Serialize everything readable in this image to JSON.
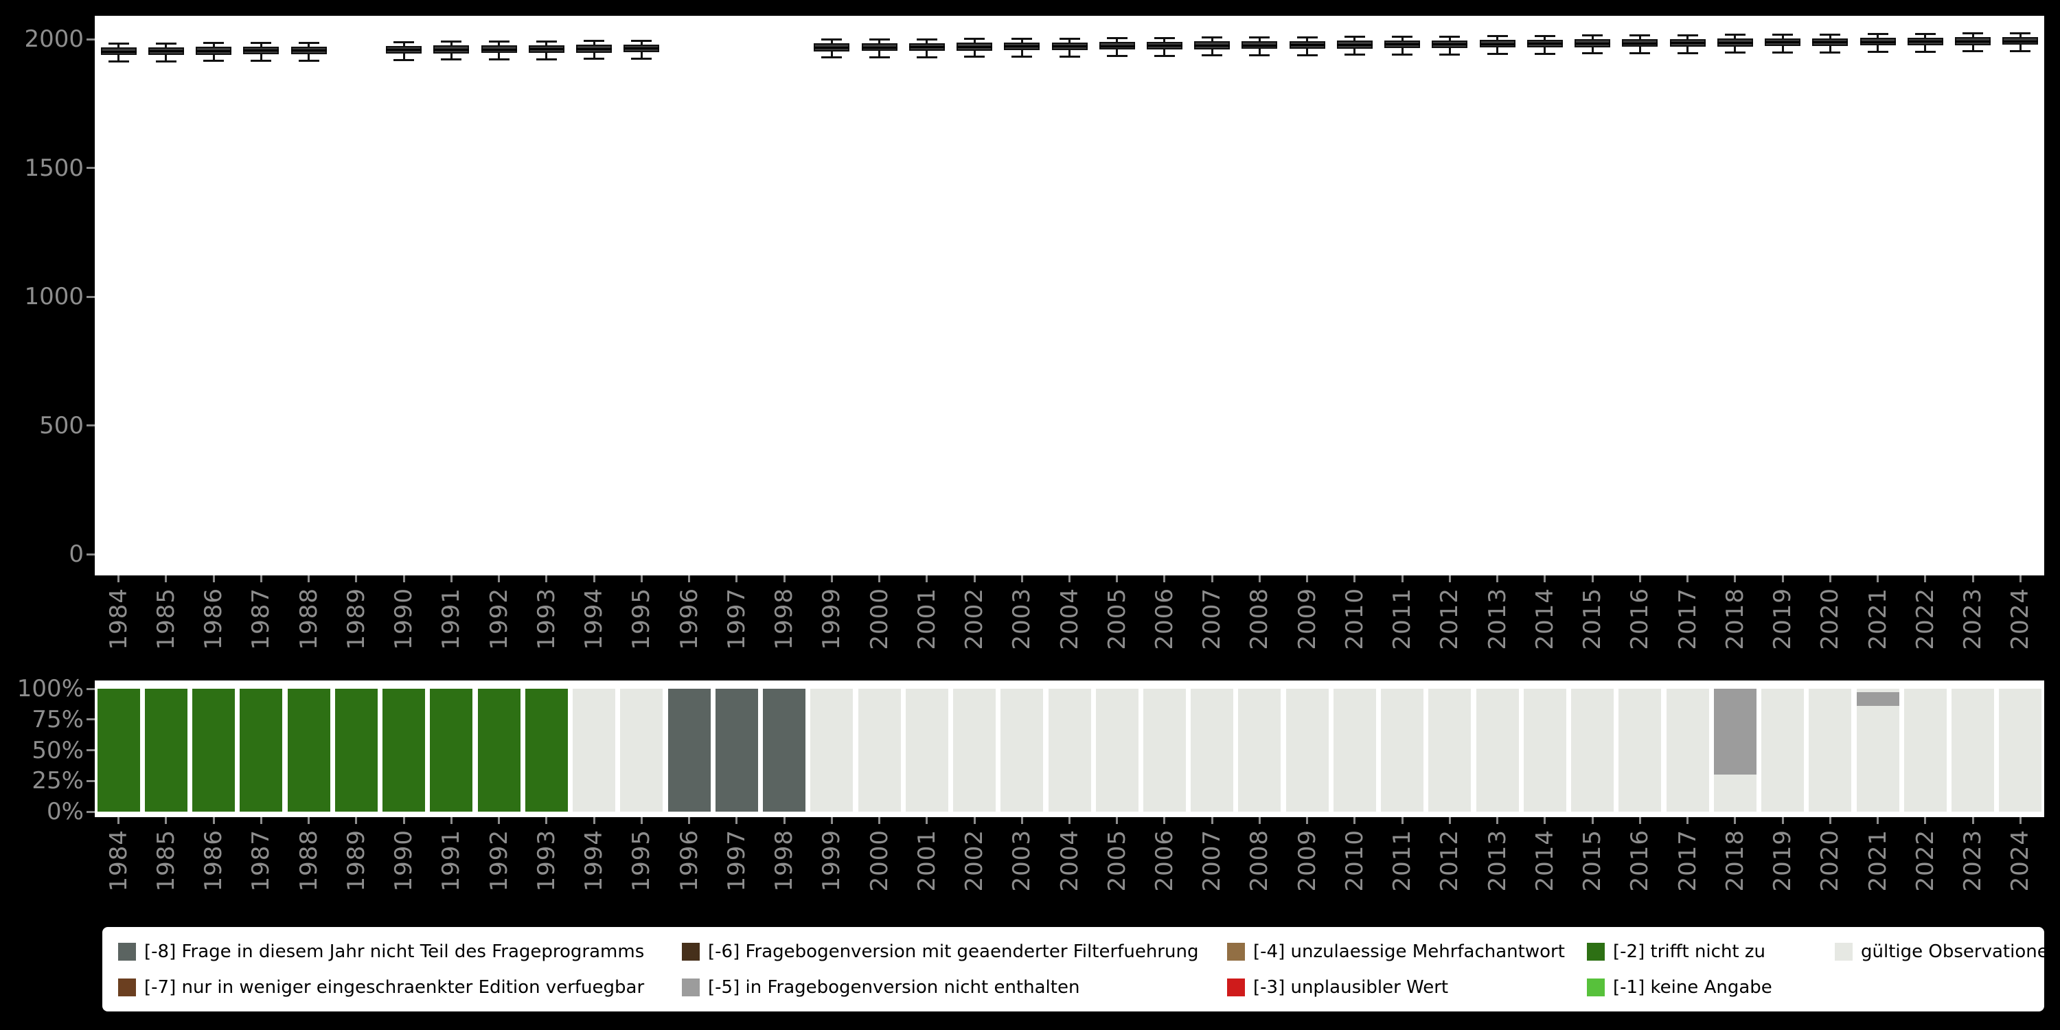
{
  "figure": {
    "background": "#000000",
    "panel_background": "#ffffff",
    "axis_text_color": "#8e8e8e",
    "box_fill": "#3c3c3c",
    "box_line": "#111111"
  },
  "years": [
    "1984",
    "1985",
    "1986",
    "1987",
    "1988",
    "1989",
    "1990",
    "1991",
    "1992",
    "1993",
    "1994",
    "1995",
    "1996",
    "1997",
    "1998",
    "1999",
    "2000",
    "2001",
    "2002",
    "2003",
    "2004",
    "2005",
    "2006",
    "2007",
    "2008",
    "2009",
    "2010",
    "2011",
    "2012",
    "2013",
    "2014",
    "2015",
    "2016",
    "2017",
    "2018",
    "2019",
    "2020",
    "2021",
    "2022",
    "2023",
    "2024"
  ],
  "code_colors": {
    "-8": "#5b6461",
    "-7": "#6b3f20",
    "-6": "#46301b",
    "-5": "#9c9c9c",
    "-4": "#926f44",
    "-3": "#cf1b1b",
    "-2": "#2d7014",
    "-1": "#57c13b",
    "valid": "#e6e8e3"
  },
  "chart_data": [
    {
      "type": "boxplot",
      "title": "",
      "xlabel": "",
      "ylabel": "",
      "ylim": [
        0,
        2090
      ],
      "y_ticks": [
        0,
        500,
        1000,
        1500,
        2000
      ],
      "categories": [
        "1984",
        "1985",
        "1986",
        "1987",
        "1988",
        "1989",
        "1990",
        "1991",
        "1992",
        "1993",
        "1994",
        "1995",
        "1996",
        "1997",
        "1998",
        "1999",
        "2000",
        "2001",
        "2002",
        "2003",
        "2004",
        "2005",
        "2006",
        "2007",
        "2008",
        "2009",
        "2010",
        "2011",
        "2012",
        "2013",
        "2014",
        "2015",
        "2016",
        "2017",
        "2018",
        "2019",
        "2020",
        "2021",
        "2022",
        "2023",
        "2024"
      ],
      "boxes": [
        {
          "year": "1984",
          "low": 1912,
          "q1": 1938,
          "median": 1952,
          "q3": 1968,
          "high": 1984
        },
        {
          "year": "1985",
          "low": 1913,
          "q1": 1939,
          "median": 1953,
          "q3": 1969,
          "high": 1985
        },
        {
          "year": "1986",
          "low": 1914,
          "q1": 1940,
          "median": 1954,
          "q3": 1970,
          "high": 1986
        },
        {
          "year": "1987",
          "low": 1915,
          "q1": 1941,
          "median": 1955,
          "q3": 1971,
          "high": 1987
        },
        {
          "year": "1988",
          "low": 1916,
          "q1": 1942,
          "median": 1956,
          "q3": 1972,
          "high": 1988
        },
        {
          "year": "1990",
          "low": 1918,
          "q1": 1944,
          "median": 1958,
          "q3": 1974,
          "high": 1990
        },
        {
          "year": "1991",
          "low": 1919,
          "q1": 1945,
          "median": 1959,
          "q3": 1975,
          "high": 1991
        },
        {
          "year": "1992",
          "low": 1920,
          "q1": 1946,
          "median": 1960,
          "q3": 1976,
          "high": 1992
        },
        {
          "year": "1993",
          "low": 1921,
          "q1": 1947,
          "median": 1961,
          "q3": 1977,
          "high": 1993
        },
        {
          "year": "1994",
          "low": 1922,
          "q1": 1948,
          "median": 1962,
          "q3": 1978,
          "high": 1994
        },
        {
          "year": "1995",
          "low": 1923,
          "q1": 1949,
          "median": 1963,
          "q3": 1979,
          "high": 1995
        },
        {
          "year": "1999",
          "low": 1927,
          "q1": 1953,
          "median": 1967,
          "q3": 1983,
          "high": 1999
        },
        {
          "year": "2000",
          "low": 1928,
          "q1": 1954,
          "median": 1968,
          "q3": 1984,
          "high": 2000
        },
        {
          "year": "2001",
          "low": 1929,
          "q1": 1955,
          "median": 1969,
          "q3": 1985,
          "high": 2001
        },
        {
          "year": "2002",
          "low": 1930,
          "q1": 1956,
          "median": 1970,
          "q3": 1986,
          "high": 2002
        },
        {
          "year": "2003",
          "low": 1931,
          "q1": 1957,
          "median": 1971,
          "q3": 1987,
          "high": 2003
        },
        {
          "year": "2004",
          "low": 1932,
          "q1": 1958,
          "median": 1972,
          "q3": 1988,
          "high": 2004
        },
        {
          "year": "2005",
          "low": 1933,
          "q1": 1959,
          "median": 1973,
          "q3": 1989,
          "high": 2005
        },
        {
          "year": "2006",
          "low": 1934,
          "q1": 1960,
          "median": 1974,
          "q3": 1990,
          "high": 2006
        },
        {
          "year": "2007",
          "low": 1935,
          "q1": 1961,
          "median": 1975,
          "q3": 1991,
          "high": 2007
        },
        {
          "year": "2008",
          "low": 1936,
          "q1": 1962,
          "median": 1976,
          "q3": 1992,
          "high": 2008
        },
        {
          "year": "2009",
          "low": 1937,
          "q1": 1963,
          "median": 1977,
          "q3": 1993,
          "high": 2009
        },
        {
          "year": "2010",
          "low": 1938,
          "q1": 1964,
          "median": 1978,
          "q3": 1994,
          "high": 2010
        },
        {
          "year": "2011",
          "low": 1939,
          "q1": 1965,
          "median": 1979,
          "q3": 1995,
          "high": 2011
        },
        {
          "year": "2012",
          "low": 1940,
          "q1": 1966,
          "median": 1980,
          "q3": 1996,
          "high": 2012
        },
        {
          "year": "2013",
          "low": 1941,
          "q1": 1967,
          "median": 1981,
          "q3": 1997,
          "high": 2013
        },
        {
          "year": "2014",
          "low": 1942,
          "q1": 1968,
          "median": 1982,
          "q3": 1998,
          "high": 2014
        },
        {
          "year": "2015",
          "low": 1943,
          "q1": 1969,
          "median": 1983,
          "q3": 1999,
          "high": 2015
        },
        {
          "year": "2016",
          "low": 1944,
          "q1": 1970,
          "median": 1984,
          "q3": 2000,
          "high": 2016
        },
        {
          "year": "2017",
          "low": 1945,
          "q1": 1971,
          "median": 1985,
          "q3": 2001,
          "high": 2017
        },
        {
          "year": "2018",
          "low": 1946,
          "q1": 1972,
          "median": 1986,
          "q3": 2002,
          "high": 2018
        },
        {
          "year": "2019",
          "low": 1947,
          "q1": 1973,
          "median": 1987,
          "q3": 2003,
          "high": 2019
        },
        {
          "year": "2020",
          "low": 1948,
          "q1": 1974,
          "median": 1988,
          "q3": 2004,
          "high": 2020
        },
        {
          "year": "2021",
          "low": 1949,
          "q1": 1975,
          "median": 1989,
          "q3": 2005,
          "high": 2021
        },
        {
          "year": "2022",
          "low": 1950,
          "q1": 1976,
          "median": 1990,
          "q3": 2006,
          "high": 2022
        },
        {
          "year": "2023",
          "low": 1951,
          "q1": 1977,
          "median": 1991,
          "q3": 2007,
          "high": 2023
        },
        {
          "year": "2024",
          "low": 1952,
          "q1": 1978,
          "median": 1992,
          "q3": 2008,
          "high": 2024
        }
      ]
    },
    {
      "type": "stacked_bar_percent",
      "title": "",
      "xlabel": "",
      "ylabel": "",
      "ylim": [
        0,
        100
      ],
      "y_ticks": [
        {
          "pct": 0,
          "label": "0%"
        },
        {
          "pct": 25,
          "label": "25%"
        },
        {
          "pct": 50,
          "label": "50%"
        },
        {
          "pct": 75,
          "label": "75%"
        },
        {
          "pct": 100,
          "label": "100%"
        }
      ],
      "categories": [
        "1984",
        "1985",
        "1986",
        "1987",
        "1988",
        "1989",
        "1990",
        "1991",
        "1992",
        "1993",
        "1994",
        "1995",
        "1996",
        "1997",
        "1998",
        "1999",
        "2000",
        "2001",
        "2002",
        "2003",
        "2004",
        "2005",
        "2006",
        "2007",
        "2008",
        "2009",
        "2010",
        "2011",
        "2012",
        "2013",
        "2014",
        "2015",
        "2016",
        "2017",
        "2018",
        "2019",
        "2020",
        "2021",
        "2022",
        "2023",
        "2024"
      ],
      "bars": [
        {
          "year": "1984",
          "segments": [
            {
              "code": "-2",
              "pct": 100
            }
          ]
        },
        {
          "year": "1985",
          "segments": [
            {
              "code": "-2",
              "pct": 100
            }
          ]
        },
        {
          "year": "1986",
          "segments": [
            {
              "code": "-2",
              "pct": 100
            }
          ]
        },
        {
          "year": "1987",
          "segments": [
            {
              "code": "-2",
              "pct": 100
            }
          ]
        },
        {
          "year": "1988",
          "segments": [
            {
              "code": "-2",
              "pct": 100
            }
          ]
        },
        {
          "year": "1989",
          "segments": [
            {
              "code": "-2",
              "pct": 100
            }
          ]
        },
        {
          "year": "1990",
          "segments": [
            {
              "code": "-2",
              "pct": 100
            }
          ]
        },
        {
          "year": "1991",
          "segments": [
            {
              "code": "-2",
              "pct": 100
            }
          ]
        },
        {
          "year": "1992",
          "segments": [
            {
              "code": "-2",
              "pct": 100
            }
          ]
        },
        {
          "year": "1993",
          "segments": [
            {
              "code": "-2",
              "pct": 100
            }
          ]
        },
        {
          "year": "1994",
          "segments": [
            {
              "code": "valid",
              "pct": 100
            }
          ]
        },
        {
          "year": "1995",
          "segments": [
            {
              "code": "valid",
              "pct": 100
            }
          ]
        },
        {
          "year": "1996",
          "segments": [
            {
              "code": "-8",
              "pct": 100
            }
          ]
        },
        {
          "year": "1997",
          "segments": [
            {
              "code": "-8",
              "pct": 100
            }
          ]
        },
        {
          "year": "1998",
          "segments": [
            {
              "code": "-8",
              "pct": 100
            }
          ]
        },
        {
          "year": "1999",
          "segments": [
            {
              "code": "valid",
              "pct": 100
            }
          ]
        },
        {
          "year": "2000",
          "segments": [
            {
              "code": "valid",
              "pct": 100
            }
          ]
        },
        {
          "year": "2001",
          "segments": [
            {
              "code": "valid",
              "pct": 100
            }
          ]
        },
        {
          "year": "2002",
          "segments": [
            {
              "code": "valid",
              "pct": 100
            }
          ]
        },
        {
          "year": "2003",
          "segments": [
            {
              "code": "valid",
              "pct": 100
            }
          ]
        },
        {
          "year": "2004",
          "segments": [
            {
              "code": "valid",
              "pct": 100
            }
          ]
        },
        {
          "year": "2005",
          "segments": [
            {
              "code": "valid",
              "pct": 100
            }
          ]
        },
        {
          "year": "2006",
          "segments": [
            {
              "code": "valid",
              "pct": 100
            }
          ]
        },
        {
          "year": "2007",
          "segments": [
            {
              "code": "valid",
              "pct": 100
            }
          ]
        },
        {
          "year": "2008",
          "segments": [
            {
              "code": "valid",
              "pct": 100
            }
          ]
        },
        {
          "year": "2009",
          "segments": [
            {
              "code": "valid",
              "pct": 100
            }
          ]
        },
        {
          "year": "2010",
          "segments": [
            {
              "code": "valid",
              "pct": 100
            }
          ]
        },
        {
          "year": "2011",
          "segments": [
            {
              "code": "valid",
              "pct": 100
            }
          ]
        },
        {
          "year": "2012",
          "segments": [
            {
              "code": "valid",
              "pct": 100
            }
          ]
        },
        {
          "year": "2013",
          "segments": [
            {
              "code": "valid",
              "pct": 100
            }
          ]
        },
        {
          "year": "2014",
          "segments": [
            {
              "code": "valid",
              "pct": 100
            }
          ]
        },
        {
          "year": "2015",
          "segments": [
            {
              "code": "valid",
              "pct": 100
            }
          ]
        },
        {
          "year": "2016",
          "segments": [
            {
              "code": "valid",
              "pct": 100
            }
          ]
        },
        {
          "year": "2017",
          "segments": [
            {
              "code": "valid",
              "pct": 100
            }
          ]
        },
        {
          "year": "2018",
          "segments": [
            {
              "code": "valid",
              "pct": 30
            },
            {
              "code": "-5",
              "pct": 70
            }
          ]
        },
        {
          "year": "2019",
          "segments": [
            {
              "code": "valid",
              "pct": 100
            }
          ]
        },
        {
          "year": "2020",
          "segments": [
            {
              "code": "valid",
              "pct": 100
            }
          ]
        },
        {
          "year": "2021",
          "segments": [
            {
              "code": "valid",
              "pct": 86
            },
            {
              "code": "-5",
              "pct": 11
            },
            {
              "code": "valid",
              "pct": 3
            }
          ]
        },
        {
          "year": "2022",
          "segments": [
            {
              "code": "valid",
              "pct": 100
            }
          ]
        },
        {
          "year": "2023",
          "segments": [
            {
              "code": "valid",
              "pct": 100
            }
          ]
        },
        {
          "year": "2024",
          "segments": [
            {
              "code": "valid",
              "pct": 100
            }
          ]
        }
      ]
    }
  ],
  "legend": {
    "rows": [
      [
        {
          "code": "-8",
          "label": "[-8] Frage in diesem Jahr nicht Teil des Frageprogramms"
        },
        {
          "code": "-6",
          "label": "[-6] Fragebogenversion mit geaenderter Filterfuehrung"
        },
        {
          "code": "-4",
          "label": "[-4] unzulaessige Mehrfachantwort"
        },
        {
          "code": "-2",
          "label": "[-2] trifft nicht zu"
        },
        {
          "code": "valid",
          "label": "gültige Observationen"
        }
      ],
      [
        {
          "code": "-7",
          "label": "[-7] nur in weniger eingeschraenkter Edition verfuegbar"
        },
        {
          "code": "-5",
          "label": "[-5] in Fragebogenversion nicht enthalten"
        },
        {
          "code": "-3",
          "label": "[-3] unplausibler Wert"
        },
        {
          "code": "-1",
          "label": "[-1] keine Angabe"
        }
      ]
    ]
  }
}
